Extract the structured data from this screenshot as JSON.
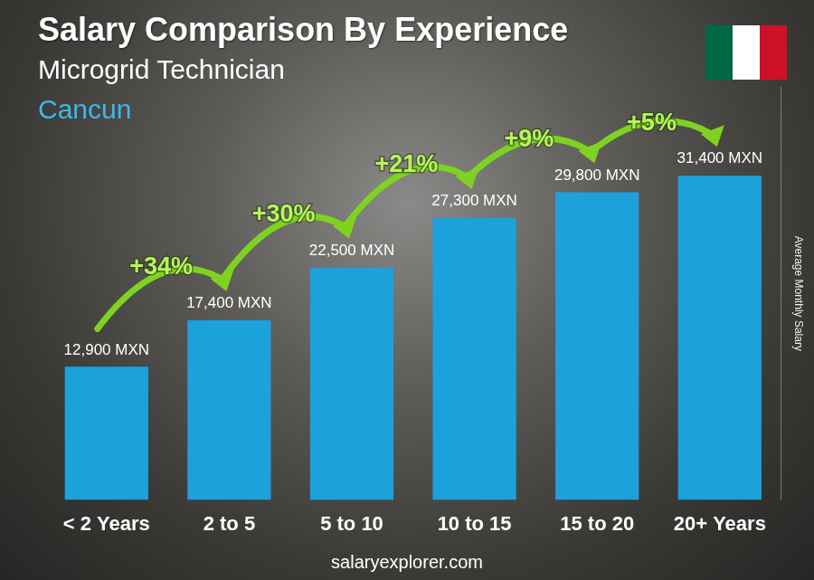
{
  "chart_data": {
    "type": "bar",
    "title": "Salary Comparison By Experience",
    "subtitle": [
      "Microgrid Technician",
      "Cancun"
    ],
    "y_label": "Average Monthly Salary",
    "source": "salaryexplorer.com",
    "categories": [
      "< 2 Years",
      "2 to 5",
      "5 to 10",
      "10 to 15",
      "15 to 20",
      "20+ Years"
    ],
    "values": [
      12900,
      17400,
      22500,
      27300,
      29800,
      31400
    ],
    "value_labels": [
      "12,900 MXN",
      "17,400 MXN",
      "22,500 MXN",
      "27,300 MXN",
      "29,800 MXN",
      "31,400 MXN"
    ],
    "annotations": [
      "+34%",
      "+30%",
      "+21%",
      "+9%",
      "+5%"
    ],
    "color": "#1da1db",
    "ylim": [
      0,
      40000
    ],
    "grid": false,
    "data_labels": true,
    "tick_labels": "x"
  }
}
